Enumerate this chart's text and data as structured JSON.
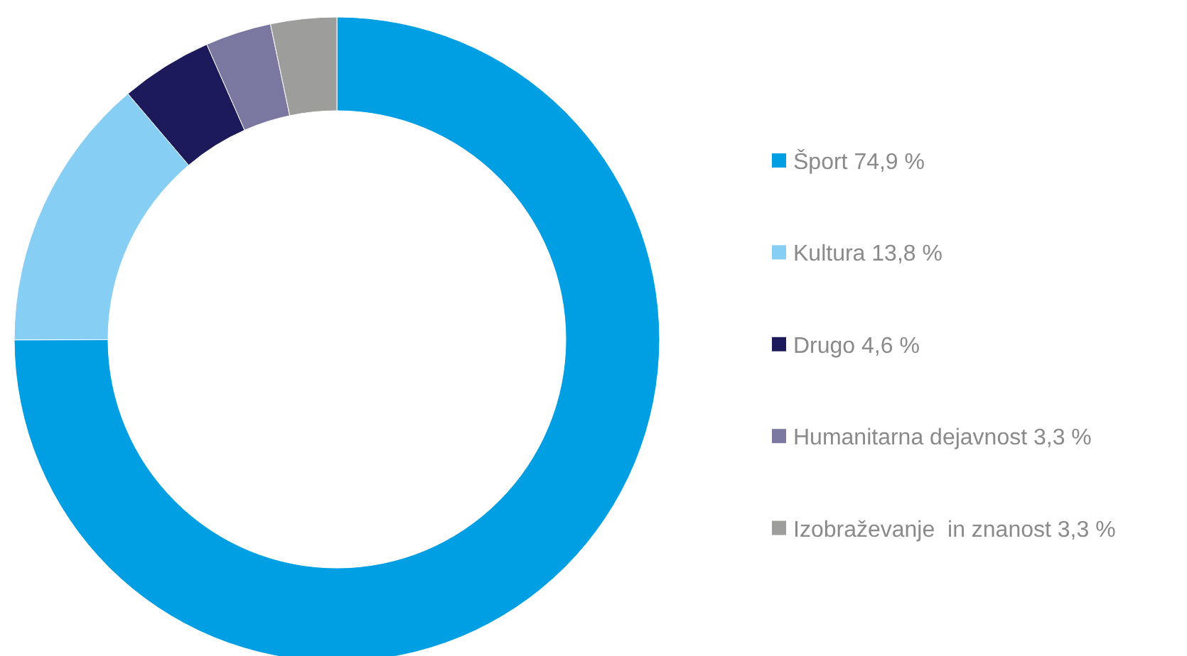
{
  "chart_data": {
    "type": "donut",
    "categories": [
      "Šport",
      "Kultura",
      "Drugo",
      "Humanitarna dejavnost",
      "Izobraževanje  in znanost"
    ],
    "values": [
      74.9,
      13.8,
      4.6,
      3.3,
      3.3
    ],
    "value_labels": [
      "74,9 %",
      "13,8 %",
      "4,6 %",
      "3,3 %",
      "3,3 %"
    ],
    "colors": [
      "#009fe3",
      "#87cef5",
      "#1d1a5b",
      "#7a77a0",
      "#9d9d9c"
    ],
    "legend": "right"
  }
}
